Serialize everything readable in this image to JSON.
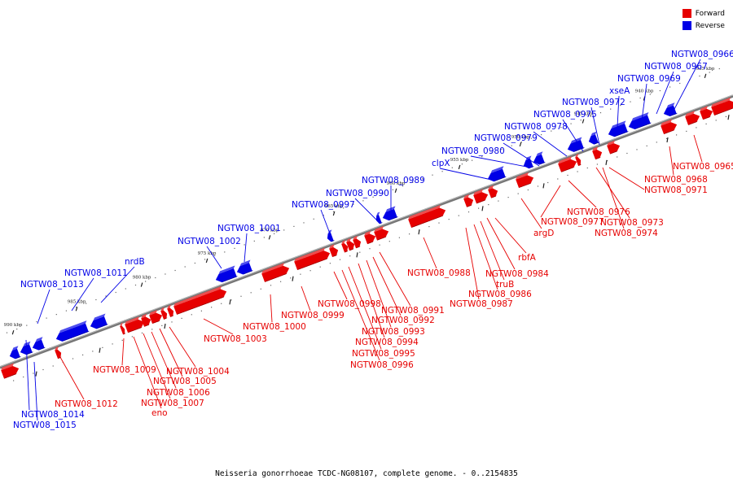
{
  "caption": "Neisseria gonorrhoeae TCDC-NG08107, complete genome. - 0..2154835",
  "colors": {
    "forward": "#e60000",
    "reverse": "#0000e6",
    "backbone": "#777777"
  },
  "legend": [
    {
      "label": "Forward",
      "color": "#e60000",
      "icon": "forward-swatch"
    },
    {
      "label": "Reverse",
      "color": "#0000e6",
      "icon": "reverse-swatch"
    }
  ],
  "ticks": [
    "935 kbp",
    "940 kbp",
    "945 kbp",
    "950 kbp",
    "955 kbp",
    "960 kbp",
    "965 kbp",
    "970 kbp",
    "975 kbp",
    "980 kbp",
    "985 kbp",
    "990 kbp"
  ],
  "reverse_labels": [
    "NGTW08_0966",
    "NGTW08_0967",
    "NGTW08_0969",
    "xseA",
    "NGTW08_0972",
    "NGTW08_0975",
    "NGTW08_0978",
    "NGTW08_0979",
    "NGTW08_0980",
    "clpX",
    "NGTW08_0989",
    "NGTW08_0990",
    "NGTW08_0997",
    "NGTW08_1001",
    "NGTW08_1002",
    "nrdB",
    "NGTW08_1011",
    "NGTW08_1013",
    "NGTW08_1014",
    "NGTW08_1015"
  ],
  "forward_labels": [
    "NGTW08_0965",
    "NGTW08_0968",
    "NGTW08_0971",
    "NGTW08_0976",
    "NGTW08_0973",
    "NGTW08_0977",
    "NGTW08_0974",
    "argD",
    "rbfA",
    "NGTW08_0984",
    "truB",
    "NGTW08_0986",
    "NGTW08_0987",
    "NGTW08_0988",
    "NGTW08_0991",
    "NGTW08_0992",
    "NGTW08_0993",
    "NGTW08_0994",
    "NGTW08_0995",
    "NGTW08_0996",
    "NGTW08_0998",
    "NGTW08_0999",
    "NGTW08_1000",
    "NGTW08_1003",
    "NGTW08_1004",
    "NGTW08_1005",
    "NGTW08_1006",
    "NGTW08_1007",
    "eno",
    "NGTW08_1009",
    "NGTW08_1012"
  ]
}
